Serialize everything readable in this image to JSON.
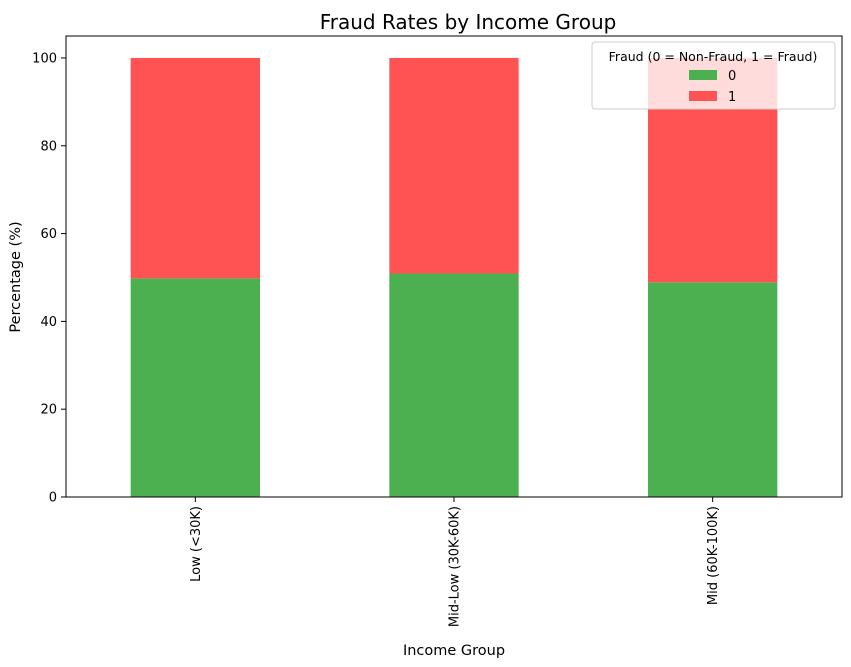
{
  "chart_data": {
    "type": "bar",
    "stacked": true,
    "title": "Fraud Rates by Income Group",
    "xlabel": "Income Group",
    "ylabel": "Percentage (%)",
    "categories": [
      "Low (<30K)",
      "Mid-Low (30K-60K)",
      "Mid (60K-100K)"
    ],
    "series": [
      {
        "name": "0",
        "values": [
          49.8,
          50.9,
          48.9
        ],
        "color": "#4caf50"
      },
      {
        "name": "1",
        "values": [
          50.2,
          49.1,
          51.1
        ],
        "color": "#ff5252"
      }
    ],
    "ylim": [
      0,
      105
    ],
    "yticks": [
      0,
      20,
      40,
      60,
      80,
      100
    ],
    "legend": {
      "title": "Fraud (0 = Non-Fraud, 1 = Fraud)",
      "position": "top-right"
    },
    "grid": false
  }
}
